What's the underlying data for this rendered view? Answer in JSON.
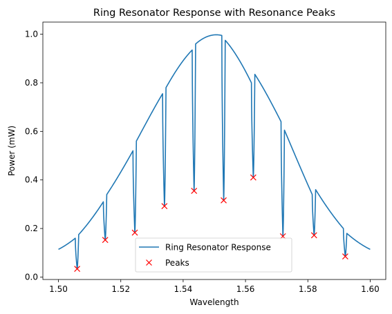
{
  "chart_data": {
    "type": "line",
    "title": "Ring Resonator Response with Resonance Peaks",
    "xlabel": "Wavelength",
    "ylabel": "Power (mW)",
    "xlim": [
      1.495,
      1.605
    ],
    "ylim": [
      -0.01,
      1.05
    ],
    "xticks": [
      1.5,
      1.52,
      1.54,
      1.56,
      1.58,
      1.6
    ],
    "xtick_labels": [
      "1.50",
      "1.52",
      "1.54",
      "1.56",
      "1.58",
      "1.60"
    ],
    "yticks": [
      0.0,
      0.2,
      0.4,
      0.6,
      0.8,
      1.0
    ],
    "ytick_labels": [
      "0.0",
      "0.2",
      "0.4",
      "0.6",
      "0.8",
      "1.0"
    ],
    "grid": false,
    "legend_position": "lower-center",
    "envelope": {
      "center": 1.55,
      "sigma": 0.024,
      "x_start": 1.5,
      "x_end": 1.6
    },
    "resonances": [
      {
        "x": 1.506,
        "before": 0.16,
        "min": 0.034,
        "after": 0.175
      },
      {
        "x": 1.515,
        "before": 0.31,
        "min": 0.153,
        "after": 0.34
      },
      {
        "x": 1.5245,
        "before": 0.52,
        "min": 0.183,
        "after": 0.56
      },
      {
        "x": 1.534,
        "before": 0.755,
        "min": 0.292,
        "after": 0.78
      },
      {
        "x": 1.5435,
        "before": 0.935,
        "min": 0.355,
        "after": 0.96
      },
      {
        "x": 1.553,
        "before": 0.995,
        "min": 0.316,
        "after": 0.975
      },
      {
        "x": 1.5625,
        "before": 0.8,
        "min": 0.41,
        "after": 0.835
      },
      {
        "x": 1.572,
        "before": 0.64,
        "min": 0.168,
        "after": 0.605
      },
      {
        "x": 1.582,
        "before": 0.34,
        "min": 0.172,
        "after": 0.36
      },
      {
        "x": 1.592,
        "before": 0.2,
        "min": 0.085,
        "after": 0.18
      }
    ],
    "series": [
      {
        "name": "Ring Resonator Response",
        "color": "#1f77b4",
        "style": "line"
      },
      {
        "name": "Peaks",
        "color": "#ff0000",
        "style": "x-marker",
        "x": [
          1.506,
          1.515,
          1.5245,
          1.534,
          1.5435,
          1.553,
          1.5625,
          1.572,
          1.582,
          1.592
        ],
        "y": [
          0.034,
          0.153,
          0.183,
          0.292,
          0.355,
          0.316,
          0.41,
          0.168,
          0.172,
          0.085
        ]
      }
    ]
  }
}
